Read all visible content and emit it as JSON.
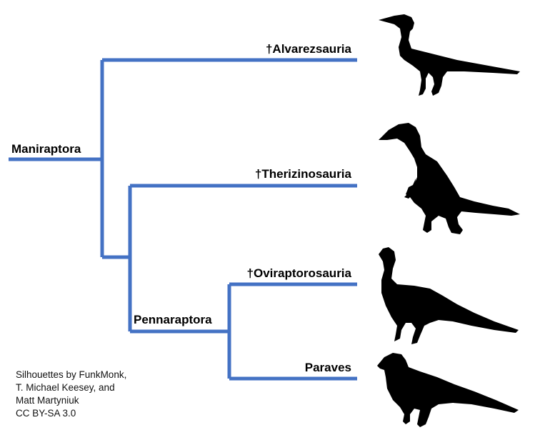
{
  "colors": {
    "branch": "#4472c4",
    "silhouette": "#000000",
    "text": "#000000",
    "background": "#ffffff"
  },
  "nodes": {
    "root": "Maniraptora",
    "pennaraptora": "Pennaraptora"
  },
  "taxa": [
    {
      "key": "alvarezsauria",
      "label": "†Alvarezsauria",
      "silhouette": "alvarezsaur-silhouette"
    },
    {
      "key": "therizinosauria",
      "label": "†Therizinosauria",
      "silhouette": "therizinosaur-silhouette"
    },
    {
      "key": "oviraptorosauria",
      "label": "†Oviraptorosauria",
      "silhouette": "oviraptorosaur-silhouette"
    },
    {
      "key": "paraves",
      "label": "Paraves",
      "silhouette": "paravian-silhouette"
    }
  ],
  "credit": {
    "lines": [
      "Silhouettes by FunkMonk,",
      "T. Michael Keesey, and",
      "Matt Martyniuk",
      "CC BY-SA 3.0"
    ]
  }
}
